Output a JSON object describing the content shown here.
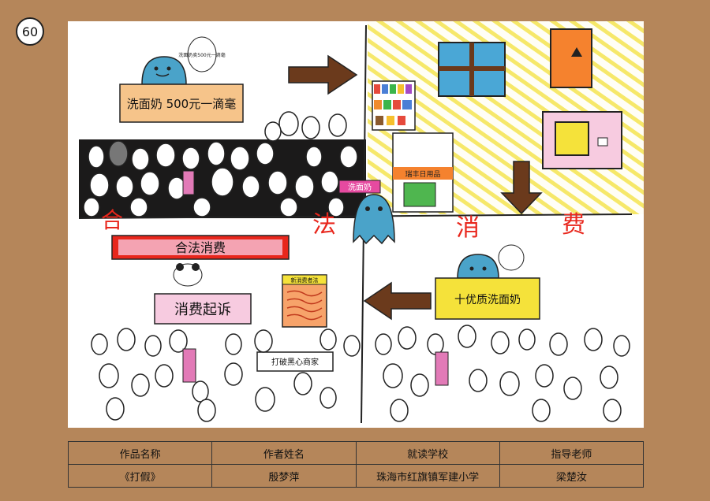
{
  "page_number": "60",
  "artwork": {
    "texts": {
      "top_sign": "洗面奶 500元一滴毫",
      "speech_top_ghost": "洗面奶卖500元一滴毫",
      "legal_sign": "合法消费",
      "lawsuit_sign": "消费起诉",
      "bottom_right_sign": "十优质洗面奶",
      "fake_product_tag": "洗面奶",
      "big_char_fa": "法",
      "big_char_he": "合",
      "big_char_xiao": "消",
      "big_char_fei": "费",
      "law_book_title": "新消费者法",
      "banner_bottom": "打破黑心商家",
      "shop_sign": "瑞丰日用品"
    }
  },
  "info_table": {
    "headers": [
      "作品名称",
      "作者姓名",
      "就读学校",
      "指导老师"
    ],
    "row": [
      "《打假》",
      "殷梦萍",
      "珠海市红旗镇军建小学",
      "梁楚汝"
    ]
  }
}
